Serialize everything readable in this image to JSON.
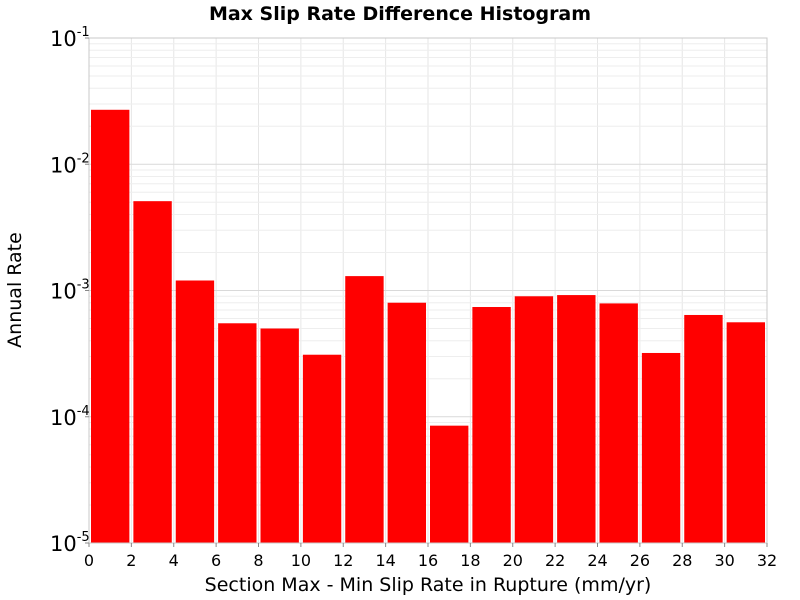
{
  "chart_data": {
    "type": "bar",
    "title": "Max Slip Rate Difference Histogram",
    "xlabel": "Section Max - Min Slip Rate in Rupture (mm/yr)",
    "ylabel": "Annual Rate",
    "x_ticks": [
      "0",
      "2",
      "4",
      "6",
      "8",
      "10",
      "12",
      "14",
      "16",
      "18",
      "20",
      "22",
      "24",
      "26",
      "28",
      "30",
      "32"
    ],
    "xlim": [
      0,
      32
    ],
    "y_scale": "log",
    "ylim": [
      1e-05,
      0.1
    ],
    "y_ticks": [
      {
        "base": "10",
        "exp": "-5",
        "value": 1e-05
      },
      {
        "base": "10",
        "exp": "-4",
        "value": 0.0001
      },
      {
        "base": "10",
        "exp": "-3",
        "value": 0.001
      },
      {
        "base": "10",
        "exp": "-2",
        "value": 0.01
      },
      {
        "base": "10",
        "exp": "-1",
        "value": 0.1
      }
    ],
    "grid": true,
    "bin_width": 2,
    "bars": [
      {
        "x_start": 0,
        "value": 0.027
      },
      {
        "x_start": 2,
        "value": 0.0051
      },
      {
        "x_start": 4,
        "value": 0.0012
      },
      {
        "x_start": 6,
        "value": 0.00055
      },
      {
        "x_start": 8,
        "value": 0.0005
      },
      {
        "x_start": 10,
        "value": 0.00031
      },
      {
        "x_start": 12,
        "value": 0.0013
      },
      {
        "x_start": 14,
        "value": 0.0008
      },
      {
        "x_start": 16,
        "value": 8.5e-05
      },
      {
        "x_start": 18,
        "value": 0.00074
      },
      {
        "x_start": 20,
        "value": 0.0009
      },
      {
        "x_start": 22,
        "value": 0.00092
      },
      {
        "x_start": 24,
        "value": 0.00079
      },
      {
        "x_start": 26,
        "value": 0.00032
      },
      {
        "x_start": 28,
        "value": 0.00064
      },
      {
        "x_start": 30,
        "value": 0.00056
      }
    ],
    "bar_color": "#ff0000",
    "grid_color": "#e6e6e6",
    "frame_color": "#c8c8c8"
  }
}
